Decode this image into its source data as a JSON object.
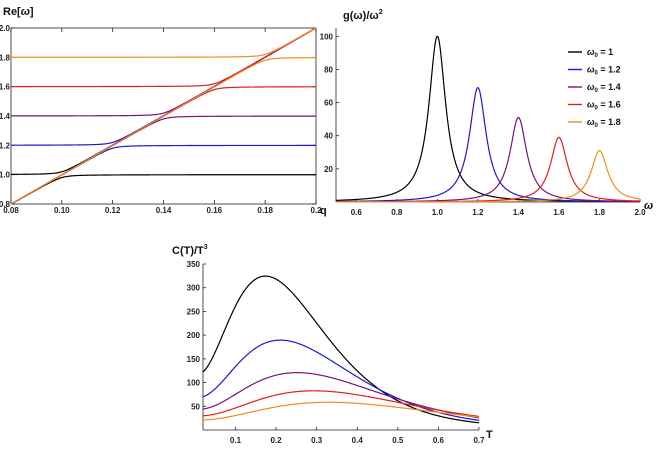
{
  "colors": {
    "w1": "#000000",
    "w12": "#1a1ad4",
    "w14": "#7a127a",
    "w16": "#e01f1f",
    "w18": "#f28c1c"
  },
  "chart_data": [
    {
      "type": "line",
      "id": "dispersion",
      "title": "",
      "ylabel_base": "Re[",
      "ylabel_sym": "ω",
      "ylabel_end": "]",
      "xlabel": "q",
      "xlim": [
        0.08,
        0.2
      ],
      "ylim": [
        0.8,
        2.0
      ],
      "xticks": [
        0.08,
        0.1,
        0.12,
        0.14,
        0.16,
        0.18,
        0.2
      ],
      "xtick_labels": [
        "0.08",
        "0.10",
        "0.12",
        "0.14",
        "0.16",
        "0.18",
        "0.2"
      ],
      "yticks": [
        0.8,
        1.0,
        1.2,
        1.4,
        1.6,
        1.8,
        2.0
      ],
      "ytick_labels": [
        "0.8",
        "1.0",
        "1.2",
        "1.4",
        "1.6",
        "1.8",
        "2.0"
      ],
      "frame": true,
      "series": [
        {
          "omega0": 1.0,
          "color_key": "w1"
        },
        {
          "omega0": 1.2,
          "color_key": "w12"
        },
        {
          "omega0": 1.4,
          "color_key": "w14"
        },
        {
          "omega0": 1.6,
          "color_key": "w16"
        },
        {
          "omega0": 1.8,
          "color_key": "w18"
        }
      ],
      "light_line_slope": 10
    },
    {
      "type": "line",
      "id": "spectral",
      "ylabel_base": "g(ω)/ω",
      "ylabel_sup": "2",
      "xlabel": "ω",
      "xlim": [
        0.5,
        2.0
      ],
      "ylim": [
        0,
        105
      ],
      "xticks": [
        0.6,
        0.8,
        1.0,
        1.2,
        1.4,
        1.6,
        1.8,
        2.0
      ],
      "xtick_labels": [
        "0.6",
        "0.8",
        "1.0",
        "1.2",
        "1.4",
        "1.6",
        "1.8",
        "2.0"
      ],
      "yticks": [
        20,
        40,
        60,
        80,
        100
      ],
      "ytick_labels": [
        "20",
        "40",
        "60",
        "80",
        "100"
      ],
      "legend_position": "top-right",
      "series": [
        {
          "label_base": "ω",
          "label_sub": "0",
          "label_val": " = 1",
          "omega0": 1.0,
          "peak": 100,
          "color_key": "w1"
        },
        {
          "label_base": "ω",
          "label_sub": "0",
          "label_val": " = 1.2",
          "omega0": 1.2,
          "peak": 69,
          "color_key": "w12"
        },
        {
          "label_base": "ω",
          "label_sub": "0",
          "label_val": " = 1.4",
          "omega0": 1.4,
          "peak": 51,
          "color_key": "w14"
        },
        {
          "label_base": "ω",
          "label_sub": "0",
          "label_val": " = 1.6",
          "omega0": 1.6,
          "peak": 39,
          "color_key": "w16"
        },
        {
          "label_base": "ω",
          "label_sub": "0",
          "label_val": " = 1.8",
          "omega0": 1.8,
          "peak": 31,
          "color_key": "w18"
        }
      ],
      "half_width": 0.05
    },
    {
      "type": "line",
      "id": "specific_heat",
      "ylabel_base": "C(T)/T",
      "ylabel_sup": "3",
      "xlabel": "T",
      "xlim": [
        0.02,
        0.7
      ],
      "ylim": [
        0,
        350
      ],
      "xticks": [
        0.1,
        0.2,
        0.3,
        0.4,
        0.5,
        0.6,
        0.7
      ],
      "xtick_labels": [
        "0.1",
        "0.2",
        "0.3",
        "0.4",
        "0.5",
        "0.6",
        "0.7"
      ],
      "yticks": [
        50,
        100,
        150,
        200,
        250,
        300,
        350
      ],
      "ytick_labels": [
        "50",
        "100",
        "150",
        "200",
        "250",
        "300",
        "350"
      ],
      "series": [
        {
          "color_key": "w1",
          "Tp": 0.19,
          "peak": 322
        },
        {
          "color_key": "w12",
          "Tp": 0.23,
          "peak": 188
        },
        {
          "color_key": "w14",
          "Tp": 0.275,
          "peak": 120
        },
        {
          "color_key": "w16",
          "Tp": 0.32,
          "peak": 82
        },
        {
          "color_key": "w18",
          "Tp": 0.36,
          "peak": 58
        }
      ]
    }
  ]
}
